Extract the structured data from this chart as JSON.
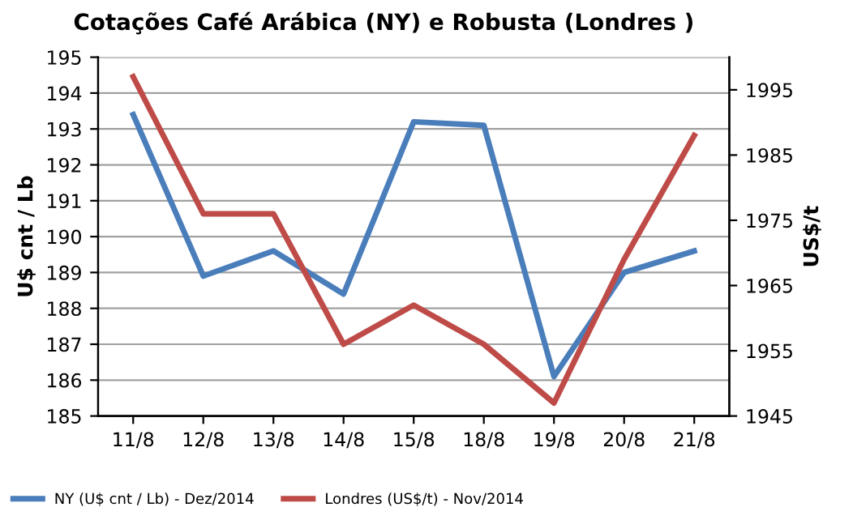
{
  "chart_data": {
    "type": "line",
    "title": "Cotações Café Arábica (NY) e Robusta (Londres )",
    "categories": [
      "11/8",
      "12/8",
      "13/8",
      "14/8",
      "15/8",
      "18/8",
      "19/8",
      "20/8",
      "21/8"
    ],
    "series": [
      {
        "name": "NY (U$ cnt / Lb) - Dez/2014",
        "color": "#4a7ebb",
        "values": [
          193.4,
          188.9,
          189.6,
          188.4,
          193.2,
          193.1,
          186.1,
          189.0,
          189.6
        ]
      },
      {
        "name": "Londres (US$/t) - Nov/2014",
        "color": "#be4b48",
        "axis": "y2",
        "values": [
          1997,
          1976,
          1976,
          1956,
          1962,
          1956,
          1947,
          1969,
          1988
        ]
      }
    ],
    "ylabel": "U$ cnt / Lb",
    "y2label": "US$/t",
    "ylim": [
      185,
      195
    ],
    "yticks": [
      185,
      186,
      187,
      188,
      189,
      190,
      191,
      192,
      193,
      194,
      195
    ],
    "y2lim": [
      1945,
      2000
    ],
    "y2ticks": [
      1945,
      1955,
      1965,
      1975,
      1985,
      1995
    ],
    "grid": "y",
    "legend": "bottom",
    "marker": "none",
    "line_style": "solid"
  }
}
